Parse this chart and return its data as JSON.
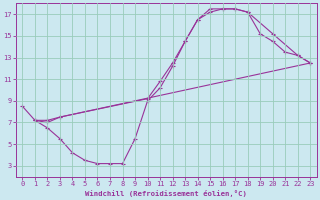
{
  "background_color": "#cce8f0",
  "grid_color": "#99ccbb",
  "line_color": "#993399",
  "marker_color": "#993399",
  "xlabel": "Windchill (Refroidissement éolien,°C)",
  "xlabel_color": "#993399",
  "xlim": [
    -0.5,
    23.5
  ],
  "ylim": [
    2,
    18
  ],
  "xticks": [
    0,
    1,
    2,
    3,
    4,
    5,
    6,
    7,
    8,
    9,
    10,
    11,
    12,
    13,
    14,
    15,
    16,
    17,
    18,
    19,
    20,
    21,
    22,
    23
  ],
  "yticks": [
    3,
    5,
    7,
    9,
    11,
    13,
    15,
    17
  ],
  "tick_color": "#993399",
  "series": [
    {
      "x": [
        0,
        1,
        2,
        3,
        4,
        5,
        6,
        7,
        8,
        9,
        10,
        11,
        12,
        13,
        14,
        15,
        16,
        17,
        18,
        19,
        20,
        21,
        22,
        23
      ],
      "y": [
        8.5,
        7.2,
        6.5,
        5.5,
        4.2,
        3.5,
        3.2,
        3.2,
        3.2,
        5.5,
        9.0,
        10.2,
        12.2,
        14.5,
        16.5,
        17.2,
        17.5,
        17.5,
        17.2,
        15.2,
        14.5,
        13.5,
        13.2,
        12.5
      ]
    },
    {
      "x": [
        1,
        2,
        3,
        10,
        11,
        12,
        13,
        14,
        15,
        16,
        17,
        18,
        20,
        22,
        23
      ],
      "y": [
        7.2,
        7.2,
        7.5,
        9.2,
        10.8,
        12.5,
        14.5,
        16.5,
        17.5,
        17.5,
        17.5,
        17.2,
        15.2,
        13.2,
        12.5
      ]
    },
    {
      "x": [
        1,
        2,
        3,
        23
      ],
      "y": [
        7.2,
        7.0,
        7.5,
        12.5
      ]
    }
  ]
}
